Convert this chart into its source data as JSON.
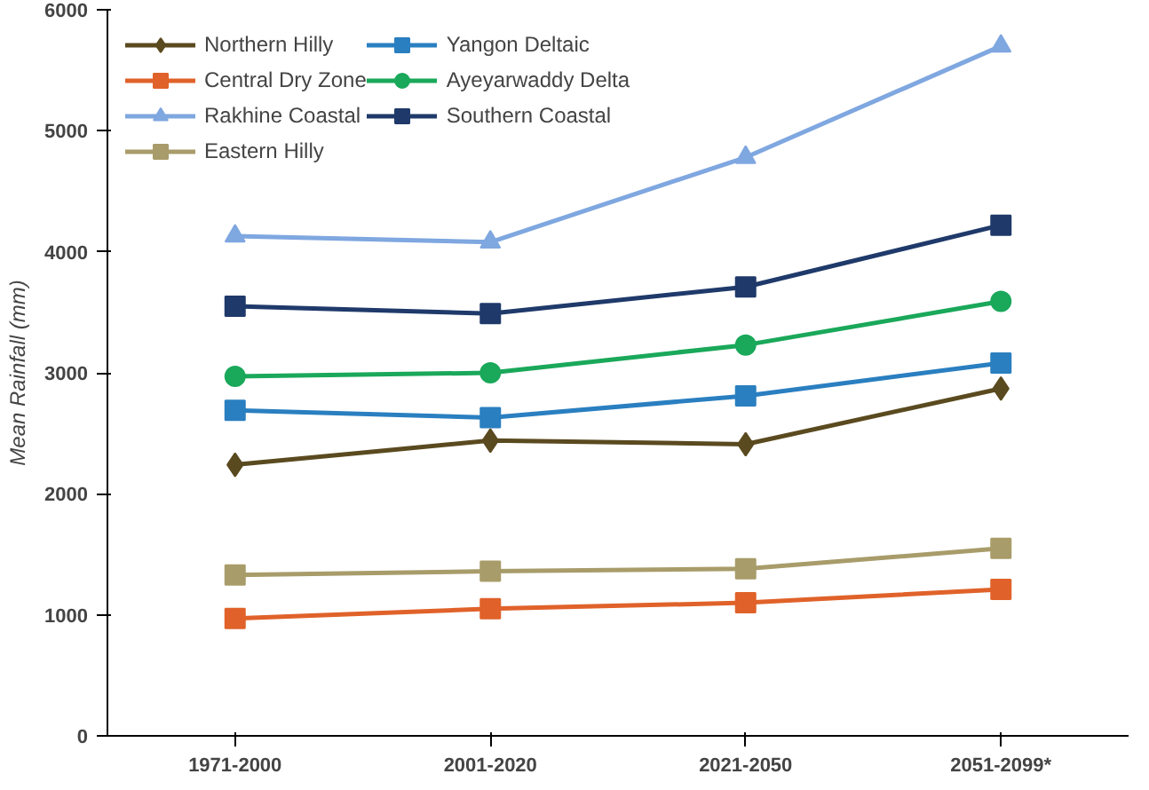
{
  "chart_data": {
    "type": "line",
    "ylabel": "Mean Rainfall (mm)",
    "categories": [
      "1971-2000",
      "2001-2020",
      "2021-2050",
      "2051-2099*"
    ],
    "ylim": [
      0,
      6000
    ],
    "yticks": [
      0,
      1000,
      2000,
      3000,
      4000,
      5000,
      6000
    ],
    "grid": false,
    "legend": "top left",
    "line_style": "solid",
    "series": [
      {
        "name": "Northern Hilly",
        "color": "#5a4a1f",
        "marker": "diamond",
        "values": [
          2240,
          2440,
          2410,
          2870
        ]
      },
      {
        "name": "Central Dry Zone",
        "color": "#e0622a",
        "marker": "square",
        "values": [
          970,
          1050,
          1100,
          1210
        ]
      },
      {
        "name": "Rakhine Coastal",
        "color": "#7fa7e0",
        "marker": "triangle",
        "values": [
          4130,
          4080,
          4780,
          5700
        ]
      },
      {
        "name": "Eastern Hilly",
        "color": "#a89c6a",
        "marker": "square",
        "values": [
          1330,
          1360,
          1380,
          1550
        ]
      },
      {
        "name": "Yangon Deltaic",
        "color": "#2a7fc0",
        "marker": "square",
        "values": [
          2690,
          2630,
          2810,
          3080
        ]
      },
      {
        "name": "Ayeyarwaddy Delta",
        "color": "#1aa85a",
        "marker": "circle",
        "values": [
          2970,
          3000,
          3230,
          3590
        ]
      },
      {
        "name": "Southern Coastal",
        "color": "#1f3a6a",
        "marker": "square",
        "values": [
          3550,
          3490,
          3710,
          4220
        ]
      }
    ]
  }
}
